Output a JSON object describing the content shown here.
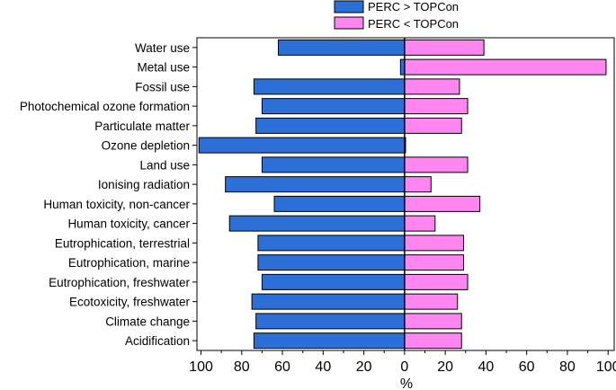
{
  "chart_data": {
    "type": "bar",
    "orientation": "horizontal",
    "categories": [
      "Water use",
      "Metal use",
      "Fossil use",
      "Photochemical ozone formation",
      "Particulate matter",
      "Ozone depletion",
      "Land use",
      "Ionising radiation",
      "Human toxicity, non-cancer",
      "Human toxicity, cancer",
      "Eutrophication, terrestrial",
      "Eutrophication, marine",
      "Eutrophication, freshwater",
      "Ecotoxicity, freshwater",
      "Climate change",
      "Acidification"
    ],
    "series": [
      {
        "name": "PERC > TOPCon",
        "color": "#2c6fd6",
        "values": [
          -62,
          -2,
          -74,
          -70,
          -73,
          -101,
          -70,
          -88,
          -64,
          -86,
          -72,
          -72,
          -70,
          -75,
          -73,
          -74
        ]
      },
      {
        "name": "PERC < TOPCon",
        "color": "#ff85f0",
        "values": [
          39,
          99,
          27,
          31,
          28,
          0.5,
          31,
          13,
          37,
          15,
          29,
          29,
          31,
          26,
          28,
          28
        ]
      }
    ],
    "xlim": [
      -102,
      103
    ],
    "xticks": [
      -100,
      -80,
      -60,
      -40,
      -20,
      0,
      20,
      40,
      60,
      80,
      100
    ],
    "xtick_labels": [
      "100",
      "80",
      "60",
      "40",
      "20",
      "0",
      "20",
      "40",
      "60",
      "80",
      "100"
    ],
    "xlabel": "%",
    "ylabel": "",
    "title": "",
    "legend_position": "top-center"
  }
}
